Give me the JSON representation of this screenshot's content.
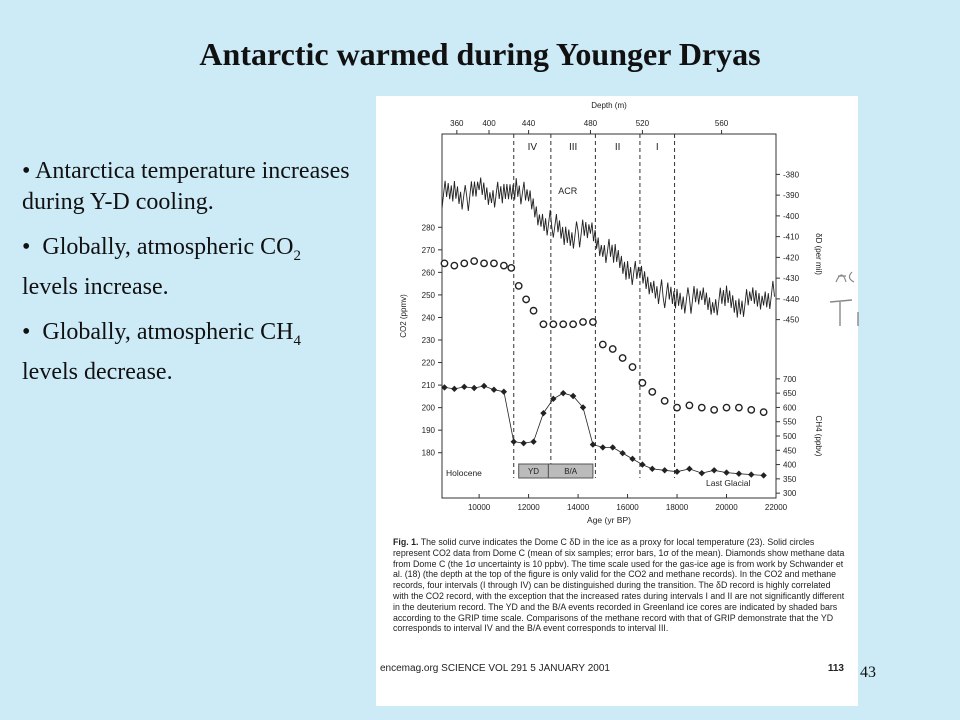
{
  "slide": {
    "title": "Antarctic warmed during Younger Dryas",
    "number": "43",
    "bullets": [
      {
        "text": "Antarctica temperature increases during Y-D cooling."
      },
      {
        "pre": "Globally, atmospheric CO",
        "sub": "2",
        "post": " levels increase."
      },
      {
        "pre": "Globally, atmospheric CH",
        "sub": "4",
        "post": " levels decrease."
      }
    ]
  },
  "figure": {
    "caption_fig": "Fig. 1.",
    "caption": "The solid curve indicates the Dome C δD in the ice as a proxy for local temperature (23). Solid circles represent CO2 data from Dome C (mean of six samples; error bars, 1σ of the mean). Diamonds show methane data from Dome C (the 1σ uncertainty is 10 ppbv). The time scale used for the gas-ice age is from work by Schwander et al. (18) (the depth at the top of the figure is only valid for the CO2 and methane records). In the CO2 and methane records, four intervals (I through IV) can be distinguished during the transition. The δD record is highly correlated with the CO2 record, with the exception that the increased rates during intervals I and II are not significantly different in the deuterium record. The YD and the B/A events recorded in Greenland ice cores are indicated by shaded bars according to the GRIP time scale. Comparisons of the methane record with that of GRIP demonstrate that the YD corresponds to interval IV and the B/A event corresponds to interval III.",
    "footer_left": "encemag.org   SCIENCE   VOL 291   5 JANUARY 2001",
    "footer_page": "113",
    "margin_note": "Ac"
  },
  "chart_data": {
    "type": "line",
    "xlabel": "Age (yr BP)",
    "x_ticks": [
      10000,
      12000,
      14000,
      16000,
      18000,
      20000,
      22000
    ],
    "xlim": [
      8500,
      22000
    ],
    "top_axis_label": "Depth (m)",
    "top_ticks": [
      {
        "age": 9100,
        "label": "360"
      },
      {
        "age": 10400,
        "label": "400"
      },
      {
        "age": 12000,
        "label": "440"
      },
      {
        "age": 14500,
        "label": "480"
      },
      {
        "age": 16600,
        "label": "520"
      },
      {
        "age": 19800,
        "label": "560"
      }
    ],
    "intervals": [
      {
        "label": "IV",
        "x": [
          11400,
          12900
        ]
      },
      {
        "label": "III",
        "x": [
          12900,
          14700
        ]
      },
      {
        "label": "II",
        "x": [
          14700,
          16500
        ]
      },
      {
        "label": "I",
        "x": [
          16500,
          17900
        ]
      }
    ],
    "interval_bounds": [
      11400,
      12900,
      14700,
      16500,
      17900
    ],
    "events": [
      {
        "label": "YD",
        "x": [
          11600,
          12800
        ]
      },
      {
        "label": "B/A",
        "x": [
          12800,
          14600
        ]
      }
    ],
    "period_labels": [
      "Holocene",
      "Last Glacial"
    ],
    "annotations": [
      "ACR"
    ],
    "series": [
      {
        "name": "δD (per mil)",
        "axis": "right-top",
        "ylim": [
          -455,
          -375
        ],
        "y_ticks": [
          -380,
          -390,
          -400,
          -410,
          -420,
          -430,
          -440,
          -450
        ],
        "x": [
          8500,
          9000,
          9500,
          10000,
          10500,
          11000,
          11500,
          12000,
          12500,
          13000,
          13500,
          14000,
          14500,
          15000,
          15500,
          16000,
          16500,
          17000,
          17500,
          18000,
          18500,
          19000,
          19500,
          20000,
          20500,
          21000,
          21500,
          22000
        ],
        "values": [
          -390,
          -388,
          -392,
          -386,
          -389,
          -391,
          -385,
          -393,
          -402,
          -404,
          -410,
          -409,
          -407,
          -415,
          -420,
          -425,
          -430,
          -434,
          -438,
          -440,
          -441,
          -439,
          -442,
          -440,
          -443,
          -441,
          -440,
          -437
        ]
      },
      {
        "name": "CO2 (ppmv)",
        "axis": "left-top",
        "ylim": [
          225,
          285
        ],
        "y_ticks": [
          280,
          270,
          260,
          250,
          240,
          230
        ],
        "x": [
          8600,
          9000,
          9400,
          9800,
          10200,
          10600,
          11000,
          11300,
          11600,
          11900,
          12200,
          12600,
          13000,
          13400,
          13800,
          14200,
          14600,
          15000,
          15400,
          15800,
          16200,
          16600,
          17000,
          17500,
          18000,
          18500,
          19000,
          19500,
          20000,
          20500,
          21000,
          21500
        ],
        "values": [
          264,
          263,
          264,
          265,
          264,
          264,
          263,
          262,
          254,
          248,
          243,
          237,
          237,
          237,
          237,
          238,
          238,
          228,
          226,
          222,
          218,
          211,
          207,
          203,
          200,
          201,
          200,
          199,
          200,
          200,
          199,
          198
        ]
      },
      {
        "name": "CH4 (ppbv)",
        "axis": "right-bottom",
        "ylim": [
          290,
          710
        ],
        "y_ticks": [
          700,
          650,
          600,
          550,
          500,
          450,
          400,
          350,
          300
        ],
        "x": [
          8600,
          9000,
          9400,
          9800,
          10200,
          10600,
          11000,
          11400,
          11800,
          12200,
          12600,
          13000,
          13400,
          13800,
          14200,
          14600,
          15000,
          15400,
          15800,
          16200,
          16600,
          17000,
          17500,
          18000,
          18500,
          19000,
          19500,
          20000,
          20500,
          21000,
          21500
        ],
        "values": [
          670,
          665,
          672,
          668,
          675,
          662,
          655,
          480,
          475,
          480,
          580,
          630,
          650,
          640,
          600,
          470,
          460,
          460,
          440,
          420,
          400,
          385,
          380,
          375,
          385,
          370,
          380,
          372,
          368,
          365,
          362
        ]
      }
    ],
    "co2_axis_label": "CO2 (ppmv)",
    "co2_axis_ticks": [
      280,
      270,
      260,
      250,
      240,
      230,
      220,
      210,
      200,
      190,
      180
    ],
    "co2_ylim": [
      175,
      285
    ],
    "dD_axis_label": "δD (per mil)",
    "ch4_axis_label": "CH4 (ppbv)"
  }
}
